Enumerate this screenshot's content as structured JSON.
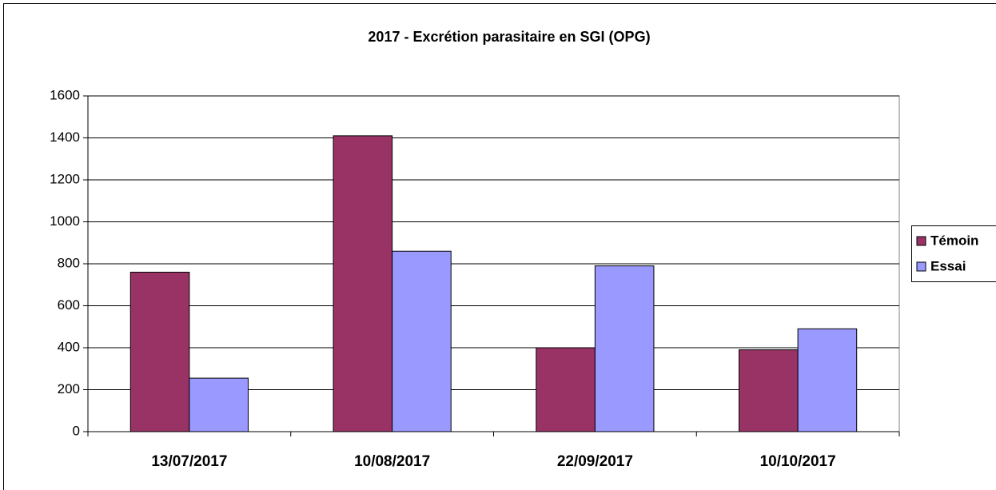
{
  "chart_data": {
    "type": "bar",
    "title": "2017 - Excrétion parasitaire en SGI (OPG)",
    "categories": [
      "13/07/2017",
      "10/08/2017",
      "22/09/2017",
      "10/10/2017"
    ],
    "series": [
      {
        "name": "Témoin",
        "color": "#993366",
        "values": [
          760,
          1410,
          400,
          390
        ]
      },
      {
        "name": "Essai",
        "color": "#9999ff",
        "values": [
          255,
          860,
          790,
          490
        ]
      }
    ],
    "ylim": [
      0,
      1600
    ],
    "yticks": [
      0,
      200,
      400,
      600,
      800,
      1000,
      1200,
      1400,
      1600
    ],
    "grid": true,
    "legend": "right"
  }
}
